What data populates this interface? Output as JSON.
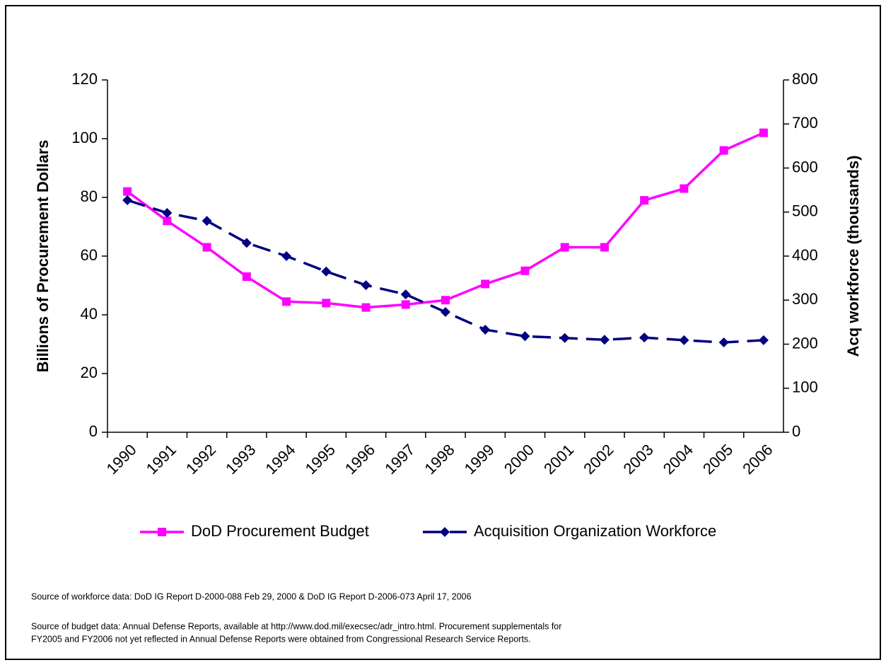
{
  "chart_data": {
    "type": "line",
    "ylabel": "Billions of Procurement Dollars",
    "y2label": "Acq workforce (thousands)",
    "categories": [
      "1990",
      "1991",
      "1992",
      "1993",
      "1994",
      "1995",
      "1996",
      "1997",
      "1998",
      "1999",
      "2000",
      "2001",
      "2002",
      "2003",
      "2004",
      "2005",
      "2006"
    ],
    "series": [
      {
        "name": "DoD Procurement Budget",
        "color": "#ff00ff",
        "marker": "square",
        "dash": "solid",
        "values": [
          82,
          72,
          63,
          53,
          44.5,
          44,
          42.5,
          43.5,
          45,
          50.5,
          55,
          63,
          63,
          79,
          83,
          96,
          102
        ]
      },
      {
        "name": "Acquisition Organization Workforce",
        "color": "#000080",
        "marker": "diamond",
        "dash": "dashed",
        "axis": "y2",
        "values": [
          527,
          498,
          480,
          430,
          400,
          365,
          334,
          313,
          273,
          233,
          218,
          214,
          210,
          215,
          209,
          204,
          209
        ]
      }
    ],
    "ylim": [
      0,
      120
    ],
    "yticks": [
      0,
      20,
      40,
      60,
      80,
      100,
      120
    ],
    "y2lim": [
      0,
      800
    ],
    "y2ticks": [
      0,
      100,
      200,
      300,
      400,
      500,
      600,
      700,
      800
    ],
    "grid": false,
    "legend": "bottom",
    "footnotes": [
      "Source of workforce data:  DoD IG Report D-2000-088 Feb 29, 2000 & DoD IG Report D-2006-073 April 17, 2006",
      "Source of budget data:  Annual Defense Reports, available at http://www.dod.mil/execsec/adr_intro.html. Procurement supplementals for",
      "FY2005 and FY2006 not yet reflected in Annual Defense Reports were obtained from Congressional Research Service Reports."
    ]
  }
}
